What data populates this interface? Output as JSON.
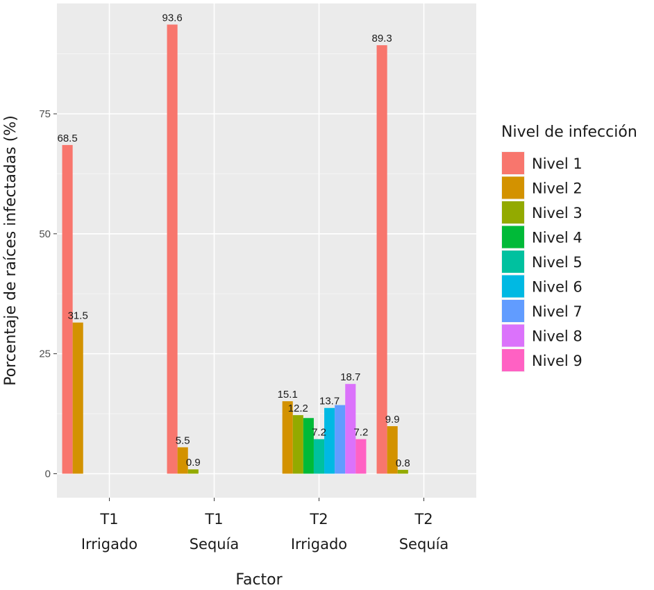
{
  "chart_data": {
    "type": "bar",
    "xlabel": "Factor",
    "ylabel": "Porcentaje de raíces infectadas (%)",
    "ylim": [
      -5,
      98
    ],
    "yticks": [
      0,
      25,
      50,
      75
    ],
    "categories": [
      [
        "T1",
        "Irrigado"
      ],
      [
        "T1",
        "Sequía"
      ],
      [
        "T2",
        "Irrigado"
      ],
      [
        "T2",
        "Sequía"
      ]
    ],
    "legend_title": "Nivel de infección",
    "legend_position": "right",
    "grid": true,
    "series": [
      {
        "name": "Nivel 1",
        "color": "#F8766D",
        "values": [
          68.5,
          93.6,
          null,
          89.3
        ]
      },
      {
        "name": "Nivel 2",
        "color": "#D39200",
        "values": [
          31.5,
          5.5,
          15.1,
          9.9
        ]
      },
      {
        "name": "Nivel 3",
        "color": "#93AA00",
        "values": [
          null,
          0.9,
          12.2,
          0.8
        ]
      },
      {
        "name": "Nivel 4",
        "color": "#00BA38",
        "values": [
          null,
          null,
          11.6,
          null
        ]
      },
      {
        "name": "Nivel 5",
        "color": "#00C19F",
        "values": [
          null,
          null,
          7.2,
          null
        ]
      },
      {
        "name": "Nivel 6",
        "color": "#00B9E3",
        "values": [
          null,
          null,
          13.7,
          null
        ]
      },
      {
        "name": "Nivel 7",
        "color": "#619CFF",
        "values": [
          null,
          null,
          14.3,
          null
        ]
      },
      {
        "name": "Nivel 8",
        "color": "#DB72FB",
        "values": [
          null,
          null,
          18.7,
          null
        ]
      },
      {
        "name": "Nivel 9",
        "color": "#FF61C3",
        "values": [
          null,
          null,
          7.2,
          null
        ]
      }
    ],
    "data_labels": [
      {
        "category": 0,
        "series": 0,
        "text": "68.5"
      },
      {
        "category": 0,
        "series": 1,
        "text": "31.5"
      },
      {
        "category": 1,
        "series": 0,
        "text": "93.6"
      },
      {
        "category": 1,
        "series": 1,
        "text": "5.5"
      },
      {
        "category": 1,
        "series": 2,
        "text": "0.9"
      },
      {
        "category": 2,
        "series": 1,
        "text": "15.1"
      },
      {
        "category": 2,
        "series": 2,
        "text": "12.2"
      },
      {
        "category": 2,
        "series": 4,
        "text": "7.2"
      },
      {
        "category": 2,
        "series": 5,
        "text": "13.7"
      },
      {
        "category": 2,
        "series": 7,
        "text": "18.7"
      },
      {
        "category": 2,
        "series": 8,
        "text": "7.2"
      },
      {
        "category": 3,
        "series": 0,
        "text": "89.3"
      },
      {
        "category": 3,
        "series": 1,
        "text": "9.9"
      },
      {
        "category": 3,
        "series": 2,
        "text": "0.8"
      }
    ]
  }
}
